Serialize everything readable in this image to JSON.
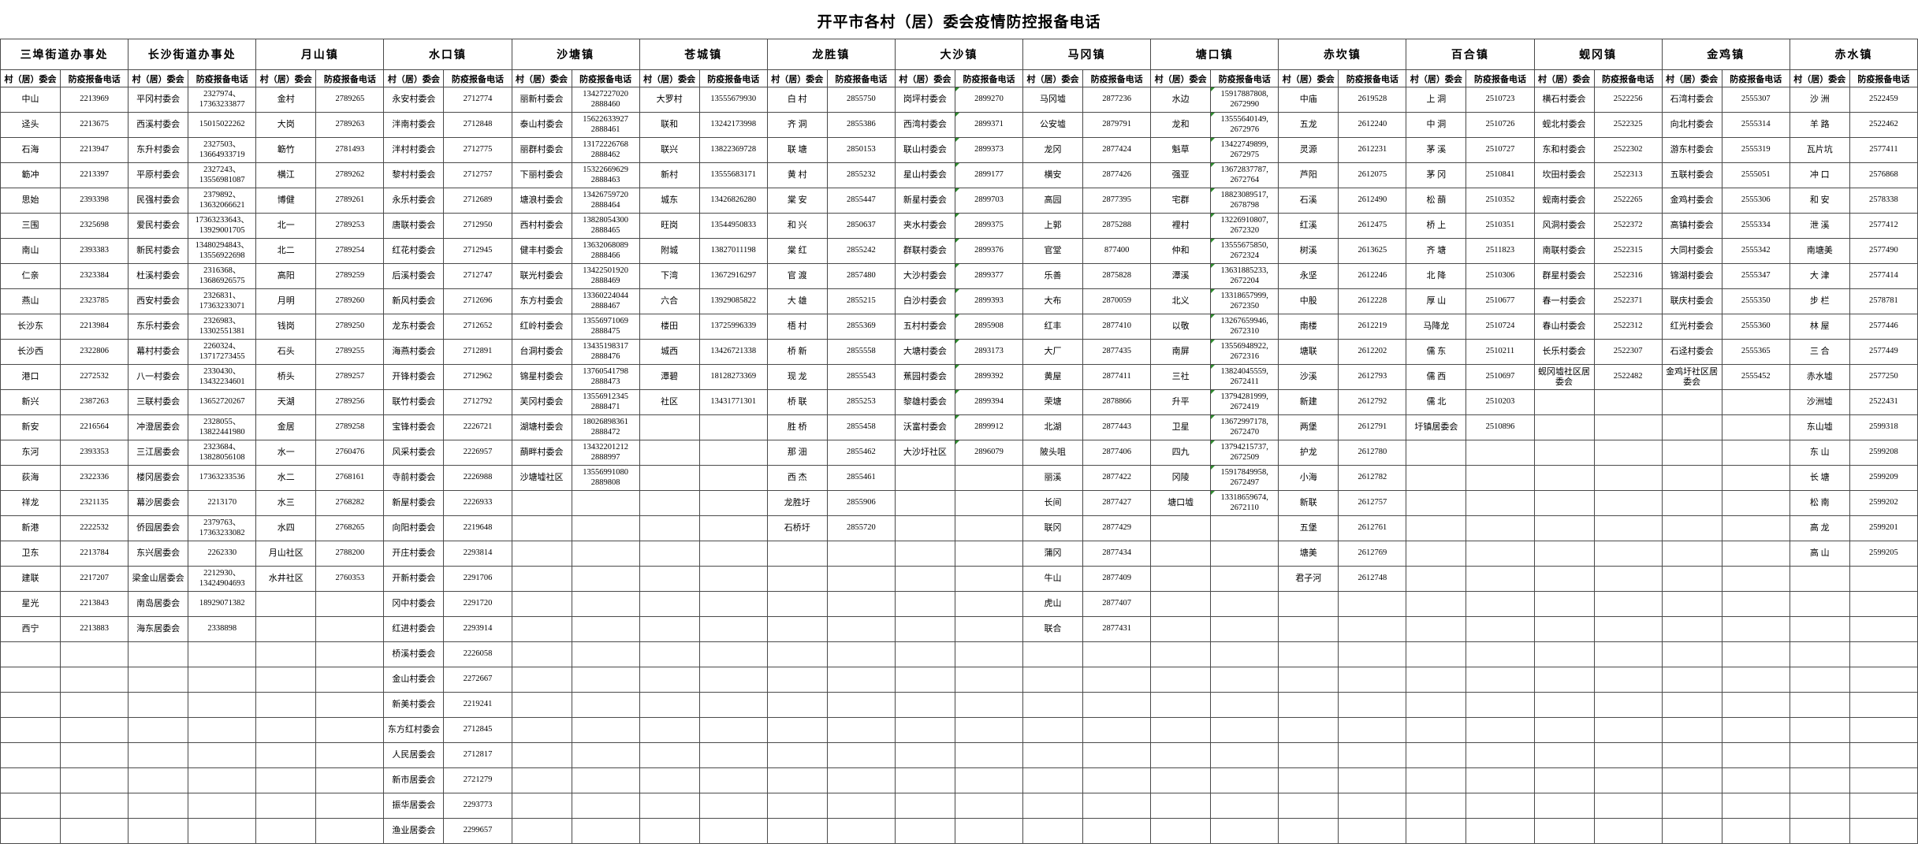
{
  "title": "开平市各村（居）委会疫情防控报备电话",
  "column_headers": {
    "name": "村（居）委会",
    "phone": "防疫报备电话"
  },
  "layout": {
    "name_col_width": 76,
    "phone_col_width": 86,
    "max_rows": 30
  },
  "groups": [
    {
      "town": "三埠街道办事处",
      "marker": false,
      "entries": [
        [
          "中山",
          "2213969"
        ],
        [
          "迳头",
          "2213675"
        ],
        [
          "石海",
          "2213947"
        ],
        [
          "簕冲",
          "2213397"
        ],
        [
          "思始",
          "2393398"
        ],
        [
          "三围",
          "2325698"
        ],
        [
          "南山",
          "2393383"
        ],
        [
          "仁亲",
          "2323384"
        ],
        [
          "燕山",
          "2323785"
        ],
        [
          "长沙东",
          "2213984"
        ],
        [
          "长沙西",
          "2322806"
        ],
        [
          "港口",
          "2272532"
        ],
        [
          "新兴",
          "2387263"
        ],
        [
          "新安",
          "2216564"
        ],
        [
          "东河",
          "2393353"
        ],
        [
          "荻海",
          "2322336"
        ],
        [
          "祥龙",
          "2321135"
        ],
        [
          "新港",
          "2222532"
        ],
        [
          "卫东",
          "2213784"
        ],
        [
          "建联",
          "2217207"
        ],
        [
          "星光",
          "2213843"
        ],
        [
          "西宁",
          "2213883"
        ]
      ]
    },
    {
      "town": "长沙街道办事处",
      "marker": false,
      "entries": [
        [
          "平冈村委会",
          "2327974、\n17363233877"
        ],
        [
          "西溪村委会",
          "15015022262"
        ],
        [
          "东升村委会",
          "2327503、\n13664933719"
        ],
        [
          "平原村委会",
          "2327243、\n13556981087"
        ],
        [
          "民强村委会",
          "2379892、\n13632066621"
        ],
        [
          "爱民村委会",
          "17363233643、\n13929001705"
        ],
        [
          "新民村委会",
          "13480294843、\n13556922698"
        ],
        [
          "杜溪村委会",
          "2316368、\n13686926575"
        ],
        [
          "西安村委会",
          "2326831、\n17363233071"
        ],
        [
          "东乐村委会",
          "2326983、\n13302551381"
        ],
        [
          "幕村村委会",
          "2260324、\n13717273455"
        ],
        [
          "八一村委会",
          "2330430、\n13432234601"
        ],
        [
          "三联村委会",
          "13652720267"
        ],
        [
          "冲澄居委会",
          "2328055、\n13822441980"
        ],
        [
          "三江居委会",
          "2323684、\n13828056108"
        ],
        [
          "楼冈居委会",
          "17363233536"
        ],
        [
          "幕沙居委会",
          "2213170"
        ],
        [
          "侨园居委会",
          "2379763、\n17363233082"
        ],
        [
          "东兴居委会",
          "2262330"
        ],
        [
          "梁金山居委会",
          "2212930、\n13424904693"
        ],
        [
          "南岛居委会",
          "18929071382"
        ],
        [
          "海东居委会",
          "2338898"
        ]
      ]
    },
    {
      "town": "月山镇",
      "marker": false,
      "entries": [
        [
          "金村",
          "2789265"
        ],
        [
          "大岗",
          "2789263"
        ],
        [
          "簕竹",
          "2781493"
        ],
        [
          "横江",
          "2789262"
        ],
        [
          "博健",
          "2789261"
        ],
        [
          "北一",
          "2789253"
        ],
        [
          "北二",
          "2789254"
        ],
        [
          "高阳",
          "2789259"
        ],
        [
          "月明",
          "2789260"
        ],
        [
          "钱岗",
          "2789250"
        ],
        [
          "石头",
          "2789255"
        ],
        [
          "桥头",
          "2789257"
        ],
        [
          "天湖",
          "2789256"
        ],
        [
          "金居",
          "2789258"
        ],
        [
          "水一",
          "2760476"
        ],
        [
          "水二",
          "2768161"
        ],
        [
          "水三",
          "2768282"
        ],
        [
          "水四",
          "2768265"
        ],
        [
          "月山社区",
          "2788200"
        ],
        [
          "水井社区",
          "2760353"
        ]
      ]
    },
    {
      "town": "水口镇",
      "marker": false,
      "entries": [
        [
          "永安村委会",
          "2712774"
        ],
        [
          "泮南村委会",
          "2712848"
        ],
        [
          "泮村村委会",
          "2712775"
        ],
        [
          "黎村村委会",
          "2712757"
        ],
        [
          "永乐村委会",
          "2712689"
        ],
        [
          "唐联村委会",
          "2712950"
        ],
        [
          "红花村委会",
          "2712945"
        ],
        [
          "后溪村委会",
          "2712747"
        ],
        [
          "新风村委会",
          "2712696"
        ],
        [
          "龙东村委会",
          "2712652"
        ],
        [
          "海燕村委会",
          "2712891"
        ],
        [
          "开锋村委会",
          "2712962"
        ],
        [
          "联竹村委会",
          "2712792"
        ],
        [
          "宝锋村委会",
          "2226721"
        ],
        [
          "风采村委会",
          "2226957"
        ],
        [
          "寺前村委会",
          "2226988"
        ],
        [
          "新屋村委会",
          "2226933"
        ],
        [
          "向阳村委会",
          "2219648"
        ],
        [
          "开庄村委会",
          "2293814"
        ],
        [
          "开新村委会",
          "2291706"
        ],
        [
          "冈中村委会",
          "2291720"
        ],
        [
          "红进村委会",
          "2293914"
        ],
        [
          "桥溪村委会",
          "2226058"
        ],
        [
          "金山村委会",
          "2272667"
        ],
        [
          "新美村委会",
          "2219241"
        ],
        [
          "东方红村委会",
          "2712845"
        ],
        [
          "人民居委会",
          "2712817"
        ],
        [
          "新市居委会",
          "2721279"
        ],
        [
          "振华居委会",
          "2293773"
        ],
        [
          "渔业居委会",
          "2299657"
        ]
      ]
    },
    {
      "town": "沙塘镇",
      "marker": false,
      "entries": [
        [
          "丽新村委会",
          "13427227020\n2888460"
        ],
        [
          "泰山村委会",
          "15622633927\n2888461"
        ],
        [
          "丽群村委会",
          "13172226768\n2888462"
        ],
        [
          "下丽村委会",
          "15322669629\n2888463"
        ],
        [
          "塘浪村委会",
          "13426759720\n2888464"
        ],
        [
          "西村村委会",
          "13828054300\n2888465"
        ],
        [
          "健丰村委会",
          "13632068089\n2888466"
        ],
        [
          "联光村委会",
          "13422501920\n2888469"
        ],
        [
          "东方村委会",
          "13360224044\n2888467"
        ],
        [
          "红岭村委会",
          "13556971069\n2888475"
        ],
        [
          "台洞村委会",
          "13435198317\n2888476"
        ],
        [
          "锦星村委会",
          "13760541798\n2888473"
        ],
        [
          "芙冈村委会",
          "13556912345\n2888471"
        ],
        [
          "湖塘村委会",
          "18026898361\n2888472"
        ],
        [
          "蓢畔村委会",
          "13432201212\n2888997"
        ],
        [
          "沙塘墟社区",
          "13556991080\n2889808"
        ]
      ]
    },
    {
      "town": "苍城镇",
      "marker": false,
      "entries": [
        [
          "大罗村",
          "13555679930"
        ],
        [
          "联和",
          "13242173998"
        ],
        [
          "联兴",
          "13822369728"
        ],
        [
          "新村",
          "13555683171"
        ],
        [
          "城东",
          "13426826280"
        ],
        [
          "旺岗",
          "13544950833"
        ],
        [
          "附城",
          "13827011198"
        ],
        [
          "下湾",
          "13672916297"
        ],
        [
          "六合",
          "13929085822"
        ],
        [
          "楼田",
          "13725996339"
        ],
        [
          "城西",
          "13426721338"
        ],
        [
          "潭碧",
          "18128273369"
        ],
        [
          "社区",
          "13431771301"
        ]
      ]
    },
    {
      "town": "龙胜镇",
      "marker": false,
      "entries": [
        [
          "白 村",
          "2855750"
        ],
        [
          "齐 洞",
          "2855386"
        ],
        [
          "联 塘",
          "2850153"
        ],
        [
          "黄 村",
          "2855232"
        ],
        [
          "棠 安",
          "2855447"
        ],
        [
          "和 兴",
          "2850637"
        ],
        [
          "棠 红",
          "2855242"
        ],
        [
          "官 渡",
          "2857480"
        ],
        [
          "大 雄",
          "2855215"
        ],
        [
          "梧 村",
          "2855369"
        ],
        [
          "桥 新",
          "2855558"
        ],
        [
          "现 龙",
          "2855543"
        ],
        [
          "桥 联",
          "2855253"
        ],
        [
          "胜 桥",
          "2855458"
        ],
        [
          "那 沺",
          "2855462"
        ],
        [
          "西 杰",
          "2855461"
        ],
        [
          "龙胜圩",
          "2855906"
        ],
        [
          "石桥圩",
          "2855720"
        ]
      ]
    },
    {
      "town": "大沙镇",
      "marker": true,
      "entries": [
        [
          "岗坪村委会",
          "2899270"
        ],
        [
          "西湾村委会",
          "2899371"
        ],
        [
          "联山村委会",
          "2899373"
        ],
        [
          "星山村委会",
          "2899177"
        ],
        [
          "新星村委会",
          "2899703"
        ],
        [
          "夹水村委会",
          "2899375"
        ],
        [
          "群联村委会",
          "2899376"
        ],
        [
          "大沙村委会",
          "2899377"
        ],
        [
          "白沙村委会",
          "2899393"
        ],
        [
          "五村村委会",
          "2895908"
        ],
        [
          "大塘村委会",
          "2893173"
        ],
        [
          "蕉园村委会",
          "2899392"
        ],
        [
          "黎雄村委会",
          "2899394"
        ],
        [
          "沃富村委会",
          "2899912"
        ],
        [
          "大沙圩社区",
          "2896079"
        ]
      ]
    },
    {
      "town": "马冈镇",
      "marker": false,
      "entries": [
        [
          "马冈墟",
          "2877236"
        ],
        [
          "公安墟",
          "2879791"
        ],
        [
          "龙冈",
          "2877424"
        ],
        [
          "横安",
          "2877426"
        ],
        [
          "高园",
          "2877395"
        ],
        [
          "上郭",
          "2875288"
        ],
        [
          "官堂",
          "877400"
        ],
        [
          "乐善",
          "2875828"
        ],
        [
          "大布",
          "2870059"
        ],
        [
          "红丰",
          "2877410"
        ],
        [
          "大厂",
          "2877435"
        ],
        [
          "黄屋",
          "2877411"
        ],
        [
          "荣塘",
          "2878866"
        ],
        [
          "北湖",
          "2877443"
        ],
        [
          "陂头咀",
          "2877406"
        ],
        [
          "丽溪",
          "2877422"
        ],
        [
          "长间",
          "2877427"
        ],
        [
          "联冈",
          "2877429"
        ],
        [
          "蒲冈",
          "2877434"
        ],
        [
          "牛山",
          "2877409"
        ],
        [
          "虎山",
          "2877407"
        ],
        [
          "联合",
          "2877431"
        ]
      ]
    },
    {
      "town": "塘口镇",
      "marker": true,
      "entries": [
        [
          "水边",
          "15917887808,\n2672990"
        ],
        [
          "龙和",
          "13555640149,\n2672976"
        ],
        [
          "魁草",
          "13422749899,\n2672975"
        ],
        [
          "强亚",
          "13672837787,\n2672764"
        ],
        [
          "宅群",
          "18823089517,\n2678798"
        ],
        [
          "裡村",
          "13226910807,\n2672320"
        ],
        [
          "仲和",
          "13555675850,\n2672324"
        ],
        [
          "潭溪",
          "13631885233,\n2672204"
        ],
        [
          "北义",
          "13318657999,\n2672350"
        ],
        [
          "以敬",
          "13267659946,\n2672310"
        ],
        [
          "南屏",
          "13556948922,\n2672316"
        ],
        [
          "三社",
          "13824045559,\n2672411"
        ],
        [
          "升平",
          "13794281999,\n2672419"
        ],
        [
          "卫星",
          "13672997178,\n2672470"
        ],
        [
          "四九",
          "13794215737,\n2672509"
        ],
        [
          "冈陵",
          "15917849958,\n2672497"
        ],
        [
          "塘口墟",
          "13318659674,\n2672110"
        ]
      ]
    },
    {
      "town": "赤坎镇",
      "marker": false,
      "entries": [
        [
          "中庙",
          "2619528"
        ],
        [
          "五龙",
          "2612240"
        ],
        [
          "灵源",
          "2612231"
        ],
        [
          "芦阳",
          "2612075"
        ],
        [
          "石溪",
          "2612490"
        ],
        [
          "红溪",
          "2612475"
        ],
        [
          "树溪",
          "2613625"
        ],
        [
          "永坚",
          "2612246"
        ],
        [
          "中股",
          "2612228"
        ],
        [
          "南楼",
          "2612219"
        ],
        [
          "塘联",
          "2612202"
        ],
        [
          "沙溪",
          "2612793"
        ],
        [
          "新建",
          "2612792"
        ],
        [
          "两堡",
          "2612791"
        ],
        [
          "护龙",
          "2612780"
        ],
        [
          "小海",
          "2612782"
        ],
        [
          "新联",
          "2612757"
        ],
        [
          "五堡",
          "2612761"
        ],
        [
          "塘美",
          "2612769"
        ],
        [
          "君子河",
          "2612748"
        ]
      ]
    },
    {
      "town": "百合镇",
      "marker": false,
      "entries": [
        [
          "上 洞",
          "2510723"
        ],
        [
          "中 洞",
          "2510726"
        ],
        [
          "茅 溪",
          "2510727"
        ],
        [
          "茅 冈",
          "2510841"
        ],
        [
          "松 蓢",
          "2510352"
        ],
        [
          "桥 上",
          "2510351"
        ],
        [
          "齐 塘",
          "2511823"
        ],
        [
          "北 降",
          "2510306"
        ],
        [
          "厚 山",
          "2510677"
        ],
        [
          "马降龙",
          "2510724"
        ],
        [
          "儒 东",
          "2510211"
        ],
        [
          "儒 西",
          "2510697"
        ],
        [
          "儒 北",
          "2510203"
        ],
        [
          "圩镇居委会",
          "2510896"
        ]
      ]
    },
    {
      "town": "蚬冈镇",
      "marker": false,
      "entries": [
        [
          "横石村委会",
          "2522256"
        ],
        [
          "蚬北村委会",
          "2522325"
        ],
        [
          "东和村委会",
          "2522302"
        ],
        [
          "坎田村委会",
          "2522313"
        ],
        [
          "蚬南村委会",
          "2522265"
        ],
        [
          "风洞村委会",
          "2522372"
        ],
        [
          "南联村委会",
          "2522315"
        ],
        [
          "群星村委会",
          "2522316"
        ],
        [
          "春一村委会",
          "2522371"
        ],
        [
          "春山村委会",
          "2522312"
        ],
        [
          "长乐村委会",
          "2522307"
        ],
        [
          "蚬冈墟社区居委会",
          "2522482"
        ]
      ]
    },
    {
      "town": "金鸡镇",
      "marker": false,
      "entries": [
        [
          "石湾村委会",
          "2555307"
        ],
        [
          "向北村委会",
          "2555314"
        ],
        [
          "游东村委会",
          "2555319"
        ],
        [
          "五联村委会",
          "2555051"
        ],
        [
          "金鸡村委会",
          "2555306"
        ],
        [
          "高镇村委会",
          "2555334"
        ],
        [
          "大同村委会",
          "2555342"
        ],
        [
          "锦湖村委会",
          "2555347"
        ],
        [
          "联庆村委会",
          "2555350"
        ],
        [
          "红光村委会",
          "2555360"
        ],
        [
          "石迳村委会",
          "2555365"
        ],
        [
          "金鸡圩社区居委会",
          "2555452"
        ]
      ]
    },
    {
      "town": "赤水镇",
      "marker": false,
      "entries": [
        [
          "沙 洲",
          "2522459"
        ],
        [
          "羊 路",
          "2522462"
        ],
        [
          "瓦片坑",
          "2577411"
        ],
        [
          "冲 口",
          "2576868"
        ],
        [
          "和 安",
          "2578338"
        ],
        [
          "泄 溪",
          "2577412"
        ],
        [
          "南塘美",
          "2577490"
        ],
        [
          "大 津",
          "2577414"
        ],
        [
          "步 栏",
          "2578781"
        ],
        [
          "林 屋",
          "2577446"
        ],
        [
          "三 合",
          "2577449"
        ],
        [
          "赤水墟",
          "2577250"
        ],
        [
          "沙洲墟",
          "2522431"
        ],
        [
          "东山墟",
          "2599318"
        ],
        [
          "东 山",
          "2599208"
        ],
        [
          "长 塘",
          "2599209"
        ],
        [
          "松 南",
          "2599202"
        ],
        [
          "高 龙",
          "2599201"
        ],
        [
          "高 山",
          "2599205"
        ]
      ]
    }
  ]
}
